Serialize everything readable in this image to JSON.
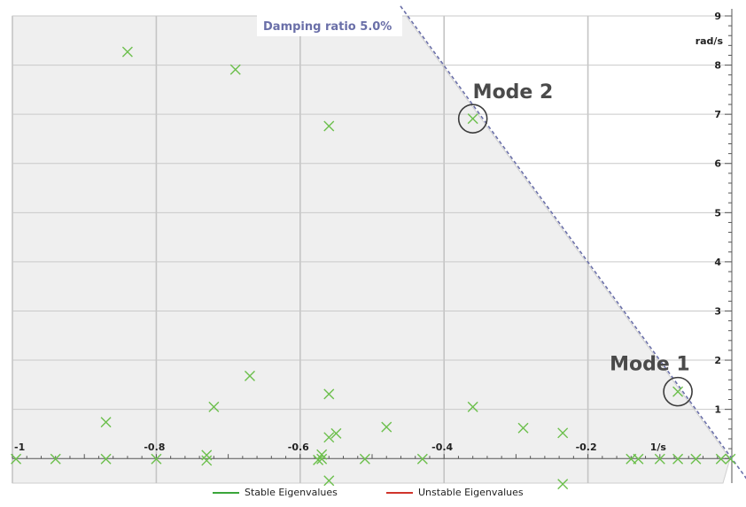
{
  "chart_data": {
    "type": "scatter",
    "title": "",
    "xlabel": "1/s",
    "ylabel": "rad/s",
    "xlim": [
      -1.0,
      0.0
    ],
    "ylim": [
      -0.5,
      9.0
    ],
    "x_ticks": [
      -1,
      -0.8,
      -0.6,
      -0.4,
      -0.2
    ],
    "x_tick_labels": [
      "-1",
      "-0.8",
      "-0.6",
      "-0.4",
      "-0.2"
    ],
    "y_ticks": [
      1,
      2,
      3,
      4,
      5,
      6,
      7,
      8,
      9
    ],
    "y_tick_labels": [
      "1",
      "2",
      "3",
      "4",
      "5",
      "6",
      "7",
      "8",
      "9"
    ],
    "grid": true,
    "legend_position": "bottom",
    "series": [
      {
        "name": "Stable Eigenvalues",
        "color": "#6cbf4c",
        "points": [
          [
            -0.84,
            8.27
          ],
          [
            -0.69,
            7.91
          ],
          [
            -0.56,
            6.76
          ],
          [
            -0.36,
            6.91
          ],
          [
            -0.075,
            1.36
          ],
          [
            -0.67,
            1.68
          ],
          [
            -0.56,
            1.31
          ],
          [
            -0.36,
            1.05
          ],
          [
            -0.72,
            1.05
          ],
          [
            -0.87,
            0.74
          ],
          [
            -0.48,
            0.64
          ],
          [
            -0.29,
            0.62
          ],
          [
            -0.235,
            0.52
          ],
          [
            -0.55,
            0.51
          ],
          [
            -0.56,
            0.43
          ],
          [
            -0.57,
            0.08
          ],
          [
            -0.73,
            0.07
          ],
          [
            -0.575,
            -0.03
          ],
          [
            -0.995,
            -0.01
          ],
          [
            -0.94,
            -0.01
          ],
          [
            -0.87,
            -0.01
          ],
          [
            -0.8,
            -0.01
          ],
          [
            -0.73,
            -0.04
          ],
          [
            -0.57,
            -0.01
          ],
          [
            -0.51,
            -0.01
          ],
          [
            -0.43,
            -0.01
          ],
          [
            -0.14,
            -0.01
          ],
          [
            -0.13,
            -0.01
          ],
          [
            -0.1,
            -0.01
          ],
          [
            -0.075,
            -0.01
          ],
          [
            -0.05,
            -0.01
          ],
          [
            -0.015,
            -0.01
          ],
          [
            -0.002,
            -0.01
          ],
          [
            -0.56,
            -0.45
          ],
          [
            -0.235,
            -0.52
          ]
        ]
      },
      {
        "name": "Unstable Eigenvalues",
        "color": "#d0342c",
        "points": []
      }
    ],
    "damping_line": {
      "label": "Damping ratio 5.0%",
      "ratio": 0.05,
      "color": "#6a6fa8"
    },
    "annotations": [
      {
        "label": "Mode 1",
        "x": -0.075,
        "y": 1.36
      },
      {
        "label": "Mode 2",
        "x": -0.36,
        "y": 6.91
      }
    ]
  }
}
